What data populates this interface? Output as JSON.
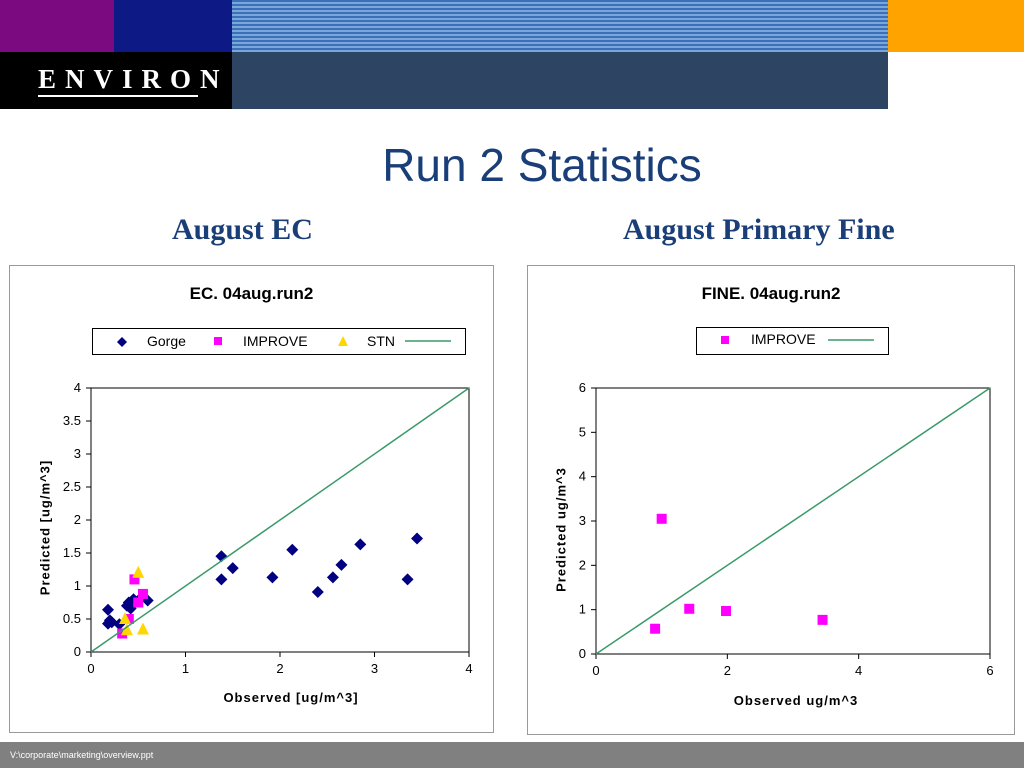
{
  "header": {
    "logo_text": "ENVIRON"
  },
  "title": "Run 2 Statistics",
  "subtitles": {
    "left": "August EC",
    "right": "August Primary Fine"
  },
  "footer": {
    "path": "V:\\corporate\\marketing\\overview.ppt"
  },
  "colors": {
    "purple": "#7b0a80",
    "navy": "#0d1a85",
    "orange": "#ffa300",
    "band": "#2e4463",
    "title": "#1a3e78",
    "footer": "#808080"
  },
  "chart_data": [
    {
      "type": "scatter",
      "title": "EC.  04aug.run2",
      "xlabel": "Observed [ug/m^3]",
      "ylabel": "Predicted [ug/m^3]",
      "xlim": [
        0,
        4
      ],
      "ylim": [
        0,
        4
      ],
      "xticks": [
        "0",
        "1",
        "2",
        "3",
        "4"
      ],
      "yticks": [
        "0",
        "0.5",
        "1",
        "1.5",
        "2",
        "2.5",
        "3",
        "3.5",
        "4"
      ],
      "legend_position": "top",
      "series": [
        {
          "name": "Gorge",
          "marker": "diamond",
          "color": "#000080",
          "points": [
            [
              0.18,
              0.64
            ],
            [
              0.2,
              0.48
            ],
            [
              0.22,
              0.45
            ],
            [
              0.18,
              0.43
            ],
            [
              0.3,
              0.42
            ],
            [
              0.38,
              0.7
            ],
            [
              0.4,
              0.75
            ],
            [
              0.42,
              0.66
            ],
            [
              0.45,
              0.8
            ],
            [
              0.5,
              0.78
            ],
            [
              0.6,
              0.78
            ],
            [
              1.38,
              1.45
            ],
            [
              1.38,
              1.1
            ],
            [
              1.5,
              1.27
            ],
            [
              1.92,
              1.13
            ],
            [
              2.13,
              1.55
            ],
            [
              2.4,
              0.91
            ],
            [
              2.56,
              1.13
            ],
            [
              2.65,
              1.32
            ],
            [
              2.85,
              1.63
            ],
            [
              3.35,
              1.1
            ],
            [
              3.45,
              1.72
            ]
          ]
        },
        {
          "name": "IMPROVE",
          "marker": "square",
          "color": "#ff00ff",
          "points": [
            [
              0.33,
              0.28
            ],
            [
              0.4,
              0.5
            ],
            [
              0.46,
              1.1
            ],
            [
              0.5,
              0.75
            ],
            [
              0.55,
              0.88
            ]
          ]
        },
        {
          "name": "STN",
          "marker": "triangle",
          "color": "#ffd700",
          "points": [
            [
              0.36,
              0.5
            ],
            [
              0.38,
              0.33
            ],
            [
              0.5,
              1.2
            ],
            [
              0.55,
              0.34
            ]
          ]
        },
        {
          "name": "",
          "marker": "line",
          "color": "#3a9a6a",
          "points": [
            [
              0,
              0
            ],
            [
              4,
              4
            ]
          ]
        }
      ]
    },
    {
      "type": "scatter",
      "title": "FINE.  04aug.run2",
      "xlabel": "Observed ug/m^3",
      "ylabel": "Predicted ug/m^3",
      "xlim": [
        0,
        6
      ],
      "ylim": [
        0,
        6
      ],
      "xticks": [
        "0",
        "2",
        "4",
        "6"
      ],
      "yticks": [
        "0",
        "1",
        "2",
        "3",
        "4",
        "5",
        "6"
      ],
      "legend_position": "top",
      "series": [
        {
          "name": "IMPROVE",
          "marker": "square",
          "color": "#ff00ff",
          "points": [
            [
              0.9,
              0.57
            ],
            [
              1.0,
              3.05
            ],
            [
              1.42,
              1.02
            ],
            [
              1.98,
              0.97
            ],
            [
              3.45,
              0.77
            ]
          ]
        },
        {
          "name": "",
          "marker": "line",
          "color": "#3a9a6a",
          "points": [
            [
              0,
              0
            ],
            [
              6,
              6
            ]
          ]
        }
      ]
    }
  ]
}
